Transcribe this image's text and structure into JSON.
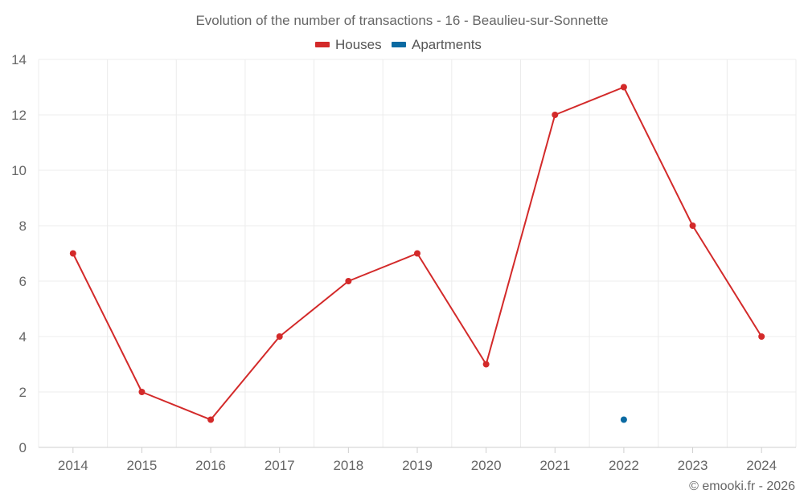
{
  "chart_data": {
    "type": "line",
    "title": "Evolution of the number of transactions - 16 - Beaulieu-sur-Sonnette",
    "categories": [
      "2014",
      "2015",
      "2016",
      "2017",
      "2018",
      "2019",
      "2020",
      "2021",
      "2022",
      "2023",
      "2024"
    ],
    "series": [
      {
        "name": "Houses",
        "color": "#d32a2a",
        "values": [
          7,
          2,
          1,
          4,
          6,
          7,
          3,
          12,
          13,
          8,
          4
        ]
      },
      {
        "name": "Apartments",
        "color": "#0b6aa2",
        "values": [
          null,
          null,
          null,
          null,
          null,
          null,
          null,
          null,
          1,
          null,
          null
        ]
      }
    ],
    "ylim": [
      0,
      14
    ],
    "yticks": [
      0,
      2,
      4,
      6,
      8,
      10,
      12,
      14
    ],
    "xlabel": "",
    "ylabel": "",
    "grid": true,
    "legend_position": "top-center"
  },
  "credit": "© emooki.fr - 2026"
}
